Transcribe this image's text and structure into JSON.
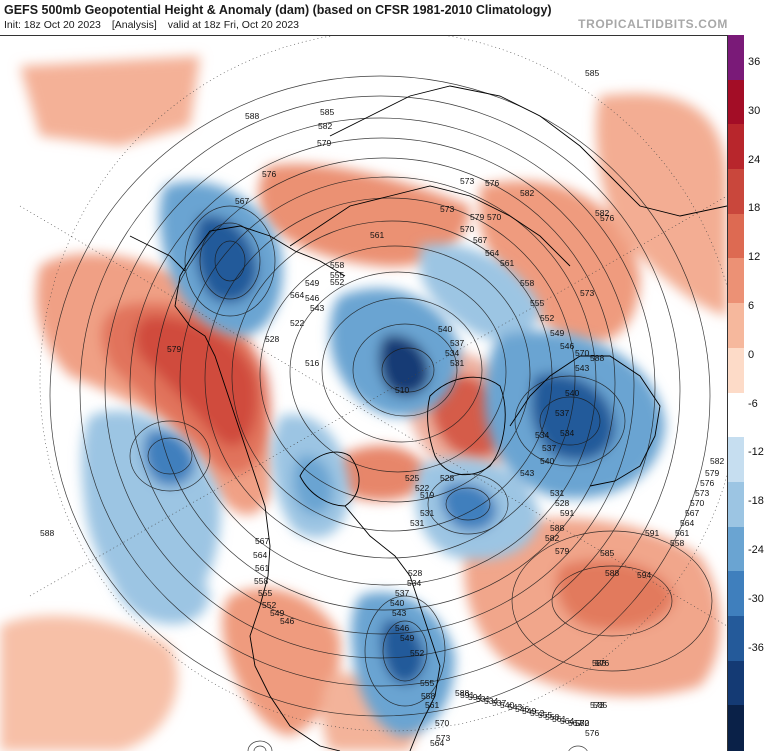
{
  "header": {
    "title": "GEFS 500mb Geopotential Height & Anomaly (dam) (based on CFSR 1981-2010 Climatology)",
    "init": "Init: 18z Oct 20 2023",
    "analysis": "[Analysis]",
    "valid": "valid at 18z Fri, Oct 20 2023",
    "brand": "TROPICALTIDBITS.COM"
  },
  "colorbar": {
    "labels": [
      "36",
      "30",
      "24",
      "18",
      "12",
      "6",
      "0",
      "-6",
      "-12",
      "-18",
      "-24",
      "-30",
      "-36"
    ],
    "colors": [
      "#7a1a78",
      "#a30d26",
      "#b8262c",
      "#c9473c",
      "#dd6a52",
      "#ec9175",
      "#f6b89d",
      "#fddbc8",
      "#ffffff",
      "#c6def0",
      "#9cc5e3",
      "#6aa4d2",
      "#3f7fbd",
      "#245a9a",
      "#143a74",
      "#0a2148"
    ]
  },
  "map": {
    "contour_labels": [
      "588",
      "585",
      "582",
      "579",
      "576",
      "573",
      "570",
      "567",
      "564",
      "561",
      "558",
      "555",
      "552",
      "549",
      "546",
      "543",
      "540",
      "537",
      "534",
      "531",
      "528",
      "522",
      "516",
      "510",
      "591",
      "594",
      "588",
      "585",
      "582",
      "576",
      "573",
      "570",
      "564",
      "561",
      "558",
      "555",
      "552",
      "549",
      "546",
      "543",
      "540",
      "537",
      "534",
      "528",
      "567",
      "564",
      "561",
      "558",
      "555",
      "552",
      "549",
      "546",
      "543",
      "540",
      "537",
      "534",
      "531",
      "531",
      "528",
      "525",
      "522",
      "519",
      "579",
      "588",
      "582",
      "576",
      "573",
      "570",
      "588",
      "585",
      "582",
      "579",
      "576",
      "573",
      "570",
      "567",
      "564",
      "561",
      "558",
      "555",
      "552",
      "549",
      "546",
      "543",
      "540",
      "537",
      "534",
      "531",
      "528",
      "591",
      "588",
      "582",
      "579",
      "576",
      "573",
      "570",
      "567",
      "564",
      "561",
      "558",
      "555",
      "552",
      "549",
      "546",
      "543",
      "540",
      "537",
      "534",
      "531",
      "594",
      "591",
      "588",
      "588",
      "585",
      "582",
      "579",
      "576",
      "573",
      "570",
      "567",
      "564",
      "561",
      "558"
    ],
    "anomaly_centers": [
      {
        "kind": "negative",
        "label": "Gulf of Alaska / Alaska low"
      },
      {
        "kind": "positive",
        "label": "Pacific NW / British Columbia ridge"
      },
      {
        "kind": "negative",
        "label": "Arctic low"
      },
      {
        "kind": "negative",
        "label": "Hudson Bay / Canada low"
      },
      {
        "kind": "negative",
        "label": "Scandinavia / NW Europe low"
      },
      {
        "kind": "negative",
        "label": "US East trough"
      },
      {
        "kind": "positive",
        "label": "Greenland ridge"
      },
      {
        "kind": "positive",
        "label": "Atlantic subtropical ridge"
      }
    ]
  }
}
